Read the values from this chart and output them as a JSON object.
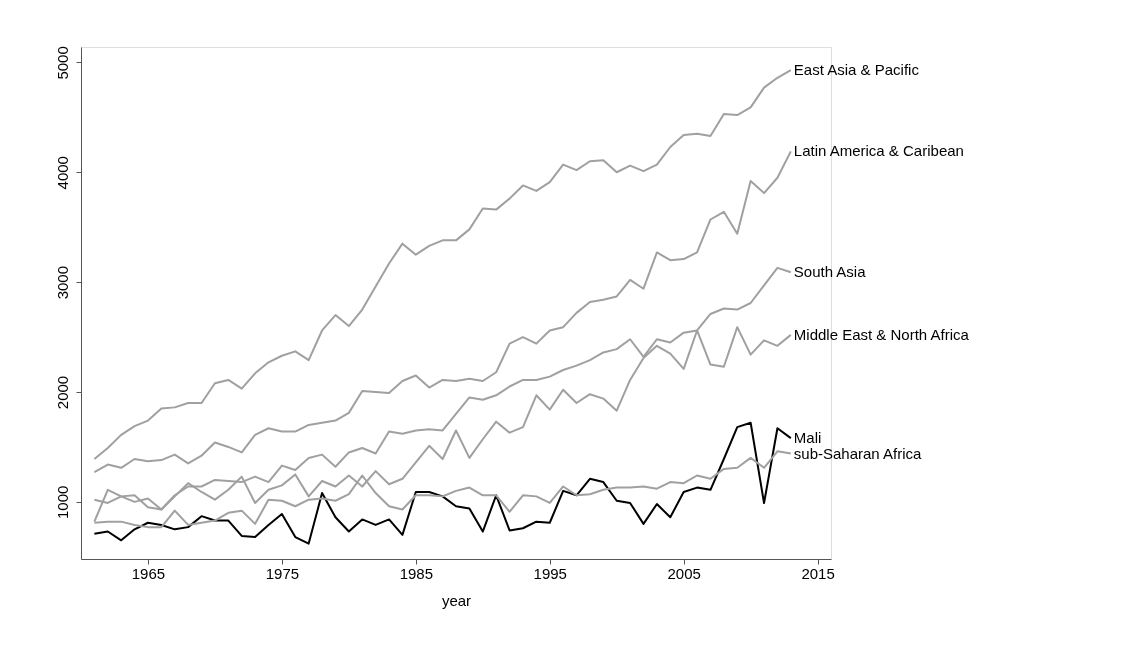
{
  "chart_data": {
    "type": "line",
    "xlabel": "year",
    "line_style": "solid",
    "x": [
      1961,
      1962,
      1963,
      1964,
      1965,
      1966,
      1967,
      1968,
      1969,
      1970,
      1971,
      1972,
      1973,
      1974,
      1975,
      1976,
      1977,
      1978,
      1979,
      1980,
      1981,
      1982,
      1983,
      1984,
      1985,
      1986,
      1987,
      1988,
      1989,
      1990,
      1991,
      1992,
      1993,
      1994,
      1995,
      1996,
      1997,
      1998,
      1999,
      2000,
      2001,
      2002,
      2003,
      2004,
      2005,
      2006,
      2007,
      2008,
      2009,
      2010,
      2011,
      2012,
      2013
    ],
    "xlim": [
      1960,
      2016
    ],
    "xticks": [
      1965,
      1975,
      1985,
      1995,
      2005,
      2015
    ],
    "ylim": [
      480,
      5140
    ],
    "yticks": [
      1000,
      2000,
      3000,
      4000,
      5000
    ],
    "series": [
      {
        "name": "East Asia & Pacific",
        "color": "#a0a0a0",
        "values": [
          1390,
          1490,
          1610,
          1690,
          1740,
          1850,
          1860,
          1900,
          1900,
          2080,
          2110,
          2030,
          2170,
          2270,
          2330,
          2370,
          2290,
          2560,
          2700,
          2600,
          2750,
          2960,
          3170,
          3350,
          3250,
          3330,
          3380,
          3380,
          3480,
          3670,
          3660,
          3760,
          3880,
          3830,
          3910,
          4070,
          4020,
          4100,
          4110,
          4000,
          4060,
          4010,
          4070,
          4230,
          4340,
          4350,
          4330,
          4530,
          4520,
          4590,
          4770,
          4860,
          4930
        ]
      },
      {
        "name": "Latin America & Caribean",
        "color": "#a0a0a0",
        "values": [
          1270,
          1340,
          1310,
          1390,
          1370,
          1380,
          1430,
          1350,
          1420,
          1540,
          1500,
          1450,
          1610,
          1670,
          1640,
          1640,
          1700,
          1720,
          1740,
          1810,
          2010,
          2000,
          1990,
          2100,
          2150,
          2040,
          2110,
          2100,
          2120,
          2100,
          2180,
          2440,
          2500,
          2440,
          2560,
          2590,
          2720,
          2820,
          2840,
          2870,
          3020,
          2940,
          3270,
          3200,
          3210,
          3270,
          3570,
          3640,
          3440,
          3920,
          3810,
          3950,
          4190
        ]
      },
      {
        "name": "South Asia",
        "color": "#a0a0a0",
        "values": [
          1020,
          990,
          1050,
          1060,
          950,
          930,
          1060,
          1140,
          1140,
          1200,
          1190,
          1180,
          1230,
          1180,
          1330,
          1290,
          1400,
          1430,
          1320,
          1450,
          1490,
          1440,
          1640,
          1620,
          1650,
          1660,
          1650,
          1800,
          1950,
          1930,
          1970,
          2050,
          2110,
          2110,
          2140,
          2200,
          2240,
          2290,
          2360,
          2390,
          2480,
          2320,
          2480,
          2450,
          2540,
          2560,
          2710,
          2760,
          2750,
          2810,
          2970,
          3130,
          3090
        ]
      },
      {
        "name": "Middle East & North Africa",
        "color": "#a0a0a0",
        "values": [
          820,
          1110,
          1050,
          1000,
          1030,
          930,
          1050,
          1170,
          1090,
          1020,
          1110,
          1230,
          990,
          1110,
          1150,
          1250,
          1050,
          1190,
          1140,
          1240,
          1140,
          1280,
          1160,
          1210,
          1360,
          1510,
          1390,
          1650,
          1400,
          1570,
          1730,
          1630,
          1680,
          1970,
          1840,
          2020,
          1900,
          1980,
          1940,
          1830,
          2110,
          2310,
          2420,
          2350,
          2210,
          2560,
          2250,
          2230,
          2590,
          2340,
          2470,
          2420,
          2520
        ]
      },
      {
        "name": "Mali",
        "color": "#000000",
        "values": [
          710,
          730,
          650,
          750,
          810,
          790,
          750,
          770,
          870,
          830,
          830,
          690,
          680,
          790,
          890,
          680,
          620,
          1080,
          860,
          730,
          840,
          790,
          840,
          700,
          1090,
          1090,
          1050,
          960,
          940,
          730,
          1060,
          740,
          760,
          820,
          810,
          1100,
          1060,
          1210,
          1180,
          1010,
          990,
          800,
          980,
          860,
          1090,
          1130,
          1110,
          1390,
          1680,
          1720,
          990,
          1670,
          1580
        ]
      },
      {
        "name": "sub-Saharan Africa",
        "color": "#a0a0a0",
        "values": [
          810,
          820,
          820,
          790,
          770,
          770,
          920,
          790,
          810,
          830,
          900,
          920,
          800,
          1020,
          1010,
          960,
          1020,
          1030,
          1010,
          1070,
          1240,
          1080,
          960,
          930,
          1060,
          1060,
          1050,
          1100,
          1130,
          1060,
          1060,
          910,
          1060,
          1050,
          990,
          1140,
          1060,
          1070,
          1110,
          1130,
          1130,
          1140,
          1120,
          1180,
          1170,
          1240,
          1210,
          1300,
          1310,
          1400,
          1310,
          1460,
          1440
        ]
      }
    ]
  }
}
